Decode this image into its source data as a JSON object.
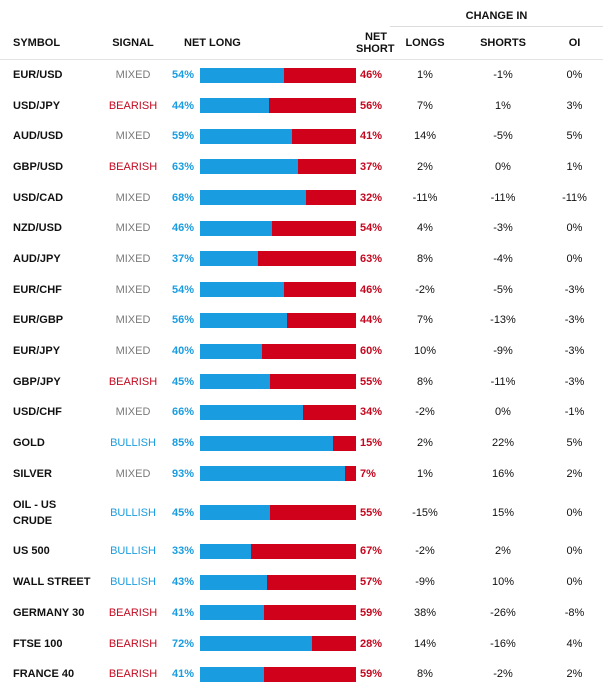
{
  "headers": {
    "change_in": "CHANGE IN",
    "symbol": "SYMBOL",
    "signal": "SIGNAL",
    "net_long": "NET LONG",
    "net_short": "NET SHORT",
    "longs": "LONGS",
    "shorts": "SHORTS",
    "oi": "OI"
  },
  "colors": {
    "long_blue": "#1a9de0",
    "short_red": "#d0021b",
    "mixed_gray": "#7a7a7a"
  },
  "rows": [
    {
      "symbol": "EUR/USD",
      "signal": "MIXED",
      "net_long": 54,
      "net_short": 46,
      "long_label": "54%",
      "short_label": "46%",
      "longs": "1%",
      "shorts": "-1%",
      "oi": "0%"
    },
    {
      "symbol": "USD/JPY",
      "signal": "BEARISH",
      "net_long": 44,
      "net_short": 56,
      "long_label": "44%",
      "short_label": "56%",
      "longs": "7%",
      "shorts": "1%",
      "oi": "3%"
    },
    {
      "symbol": "AUD/USD",
      "signal": "MIXED",
      "net_long": 59,
      "net_short": 41,
      "long_label": "59%",
      "short_label": "41%",
      "longs": "14%",
      "shorts": "-5%",
      "oi": "5%"
    },
    {
      "symbol": "GBP/USD",
      "signal": "BEARISH",
      "net_long": 63,
      "net_short": 37,
      "long_label": "63%",
      "short_label": "37%",
      "longs": "2%",
      "shorts": "0%",
      "oi": "1%"
    },
    {
      "symbol": "USD/CAD",
      "signal": "MIXED",
      "net_long": 68,
      "net_short": 32,
      "long_label": "68%",
      "short_label": "32%",
      "longs": "-11%",
      "shorts": "-11%",
      "oi": "-11%"
    },
    {
      "symbol": "NZD/USD",
      "signal": "MIXED",
      "net_long": 46,
      "net_short": 54,
      "long_label": "46%",
      "short_label": "54%",
      "longs": "4%",
      "shorts": "-3%",
      "oi": "0%"
    },
    {
      "symbol": "AUD/JPY",
      "signal": "MIXED",
      "net_long": 37,
      "net_short": 63,
      "long_label": "37%",
      "short_label": "63%",
      "longs": "8%",
      "shorts": "-4%",
      "oi": "0%"
    },
    {
      "symbol": "EUR/CHF",
      "signal": "MIXED",
      "net_long": 54,
      "net_short": 46,
      "long_label": "54%",
      "short_label": "46%",
      "longs": "-2%",
      "shorts": "-5%",
      "oi": "-3%"
    },
    {
      "symbol": "EUR/GBP",
      "signal": "MIXED",
      "net_long": 56,
      "net_short": 44,
      "long_label": "56%",
      "short_label": "44%",
      "longs": "7%",
      "shorts": "-13%",
      "oi": "-3%"
    },
    {
      "symbol": "EUR/JPY",
      "signal": "MIXED",
      "net_long": 40,
      "net_short": 60,
      "long_label": "40%",
      "short_label": "60%",
      "longs": "10%",
      "shorts": "-9%",
      "oi": "-3%"
    },
    {
      "symbol": "GBP/JPY",
      "signal": "BEARISH",
      "net_long": 45,
      "net_short": 55,
      "long_label": "45%",
      "short_label": "55%",
      "longs": "8%",
      "shorts": "-11%",
      "oi": "-3%"
    },
    {
      "symbol": "USD/CHF",
      "signal": "MIXED",
      "net_long": 66,
      "net_short": 34,
      "long_label": "66%",
      "short_label": "34%",
      "longs": "-2%",
      "shorts": "0%",
      "oi": "-1%"
    },
    {
      "symbol": "GOLD",
      "signal": "BULLISH",
      "net_long": 85,
      "net_short": 15,
      "long_label": "85%",
      "short_label": "15%",
      "longs": "2%",
      "shorts": "22%",
      "oi": "5%"
    },
    {
      "symbol": "SILVER",
      "signal": "MIXED",
      "net_long": 93,
      "net_short": 7,
      "long_label": "93%",
      "short_label": "7%",
      "longs": "1%",
      "shorts": "16%",
      "oi": "2%"
    },
    {
      "symbol": "OIL - US CRUDE",
      "signal": "BULLISH",
      "net_long": 45,
      "net_short": 55,
      "long_label": "45%",
      "short_label": "55%",
      "longs": "-15%",
      "shorts": "15%",
      "oi": "0%"
    },
    {
      "symbol": "US 500",
      "signal": "BULLISH",
      "net_long": 33,
      "net_short": 67,
      "long_label": "33%",
      "short_label": "67%",
      "longs": "-2%",
      "shorts": "2%",
      "oi": "0%"
    },
    {
      "symbol": "WALL STREET",
      "signal": "BULLISH",
      "net_long": 43,
      "net_short": 57,
      "long_label": "43%",
      "short_label": "57%",
      "longs": "-9%",
      "shorts": "10%",
      "oi": "0%"
    },
    {
      "symbol": "GERMANY 30",
      "signal": "BEARISH",
      "net_long": 41,
      "net_short": 59,
      "long_label": "41%",
      "short_label": "59%",
      "longs": "38%",
      "shorts": "-26%",
      "oi": "-8%"
    },
    {
      "symbol": "FTSE 100",
      "signal": "BEARISH",
      "net_long": 72,
      "net_short": 28,
      "long_label": "72%",
      "short_label": "28%",
      "longs": "14%",
      "shorts": "-16%",
      "oi": "4%"
    },
    {
      "symbol": "FRANCE 40",
      "signal": "BEARISH",
      "net_long": 41,
      "net_short": 59,
      "long_label": "41%",
      "short_label": "59%",
      "longs": "8%",
      "shorts": "-2%",
      "oi": "2%"
    }
  ]
}
